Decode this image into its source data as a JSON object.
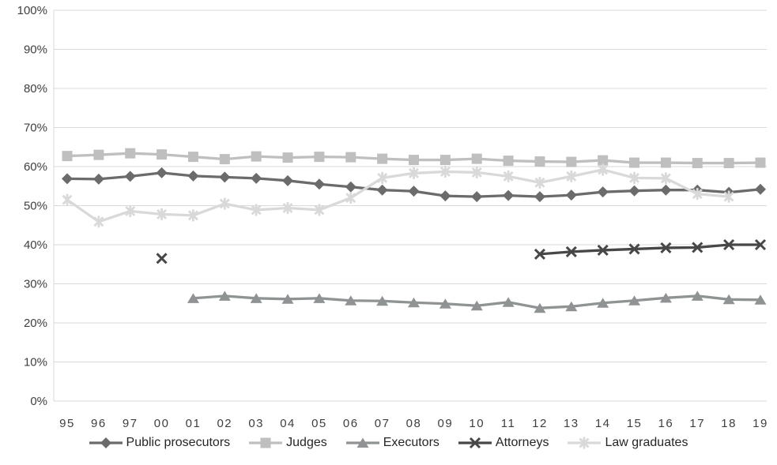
{
  "chart_data": {
    "type": "line",
    "title": "",
    "xlabel": "",
    "ylabel": "",
    "ylim": [
      0,
      100
    ],
    "ytick_step": 10,
    "yticks": [
      "0%",
      "10%",
      "20%",
      "30%",
      "40%",
      "50%",
      "60%",
      "70%",
      "80%",
      "90%",
      "100%"
    ],
    "grid": true,
    "legend_position": "bottom",
    "categories": [
      "95",
      "96",
      "97",
      "00",
      "01",
      "02",
      "03",
      "04",
      "05",
      "06",
      "07",
      "08",
      "09",
      "10",
      "11",
      "12",
      "13",
      "14",
      "15",
      "16",
      "17",
      "18",
      "19"
    ],
    "series": [
      {
        "name": "Public prosecutors",
        "marker": "diamond",
        "color": "#6b6b6b",
        "values": [
          56.9,
          56.8,
          57.5,
          58.4,
          57.6,
          57.3,
          57.0,
          56.4,
          55.5,
          54.8,
          54.0,
          53.7,
          52.5,
          52.3,
          52.6,
          52.3,
          52.7,
          53.5,
          53.8,
          54.0,
          54.0,
          53.4,
          54.2
        ]
      },
      {
        "name": "Judges",
        "marker": "square",
        "color": "#bfbfbf",
        "values": [
          62.7,
          63.0,
          63.4,
          63.1,
          62.5,
          61.9,
          62.6,
          62.3,
          62.5,
          62.4,
          62.0,
          61.7,
          61.7,
          62.0,
          61.5,
          61.3,
          61.2,
          61.6,
          61.0,
          61.0,
          60.9,
          60.9,
          61.0
        ]
      },
      {
        "name": "Executors",
        "marker": "triangle",
        "color": "#909394",
        "values": [
          null,
          null,
          null,
          null,
          26.3,
          26.9,
          26.3,
          26.1,
          26.3,
          25.7,
          25.6,
          25.2,
          24.9,
          24.4,
          25.3,
          23.8,
          24.2,
          25.1,
          25.7,
          26.4,
          26.9,
          26.0,
          25.9
        ]
      },
      {
        "name": "Attorneys",
        "marker": "x",
        "color": "#474747",
        "values": [
          null,
          null,
          null,
          36.5,
          null,
          null,
          null,
          null,
          null,
          null,
          null,
          null,
          null,
          null,
          null,
          37.6,
          38.2,
          38.6,
          38.9,
          39.2,
          39.3,
          40.0,
          40.0
        ]
      },
      {
        "name": "Law graduates",
        "marker": "asterisk",
        "color": "#d9d9d9",
        "values": [
          51.5,
          45.9,
          48.6,
          47.8,
          47.5,
          50.5,
          48.9,
          49.4,
          48.9,
          52.0,
          57.1,
          58.3,
          58.7,
          58.5,
          57.5,
          55.9,
          57.5,
          59.2,
          57.1,
          57.0,
          53.0,
          52.3,
          null
        ]
      }
    ],
    "style": {
      "gridline_color": "#d9d9d9",
      "axis_line_color": "#d9d9d9",
      "tick_label_color": "#3f3f3f",
      "line_width": 3.3,
      "tick_font_size": 15
    }
  }
}
